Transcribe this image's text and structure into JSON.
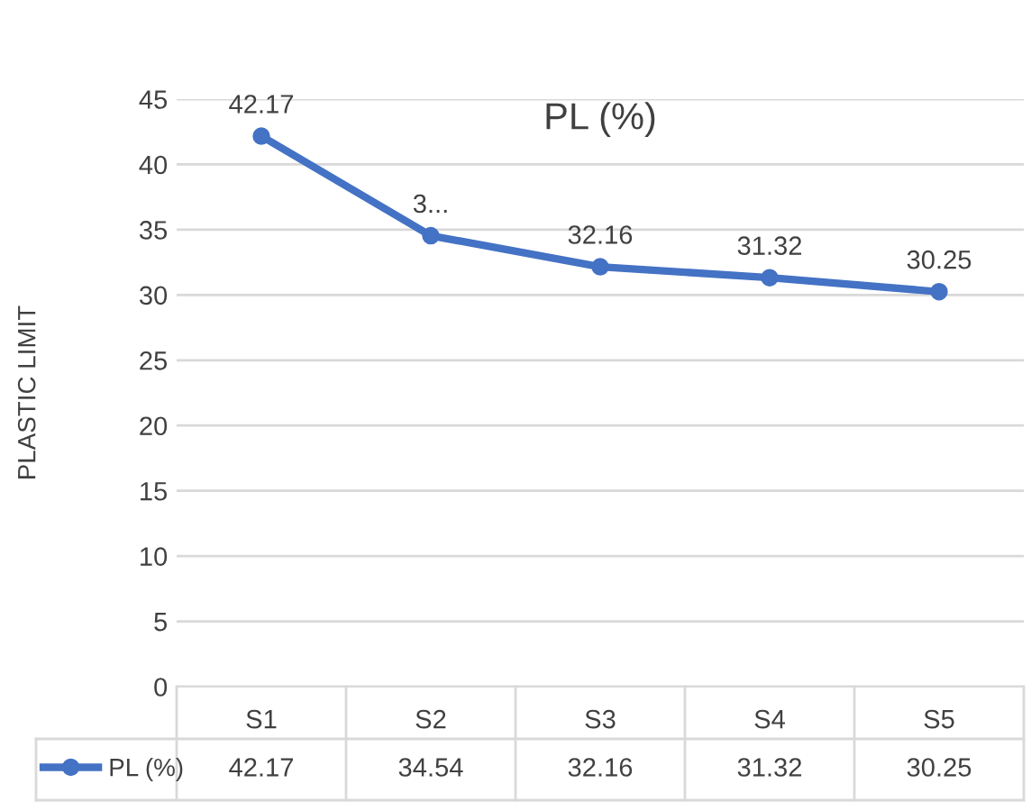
{
  "chart_data": {
    "type": "line",
    "title": "PL (%)",
    "ylabel": "PLASTIC LIMIT",
    "categories": [
      "S1",
      "S2",
      "S3",
      "S4",
      "S5"
    ],
    "series": [
      {
        "name": "PL (%)",
        "color": "#4472c4",
        "values": [
          42.17,
          34.54,
          32.16,
          31.32,
          30.25
        ]
      }
    ],
    "annotations": [
      {
        "text": "42.17",
        "x": "S1",
        "y": 42.17
      },
      {
        "text": "3...",
        "x": "S2",
        "y": 34.54
      },
      {
        "text": "32.16",
        "x": "S3",
        "y": 32.16
      },
      {
        "text": "31.32",
        "x": "S4",
        "y": 31.32
      },
      {
        "text": "30.25",
        "x": "S5",
        "y": 30.25
      }
    ],
    "ylim": [
      0,
      45
    ],
    "yticks": [
      0,
      5,
      10,
      15,
      20,
      25,
      30,
      35,
      40,
      45
    ],
    "grid": "y",
    "legend": "bottom",
    "marker": "circle",
    "line_style": "solid",
    "data_labels": true
  }
}
